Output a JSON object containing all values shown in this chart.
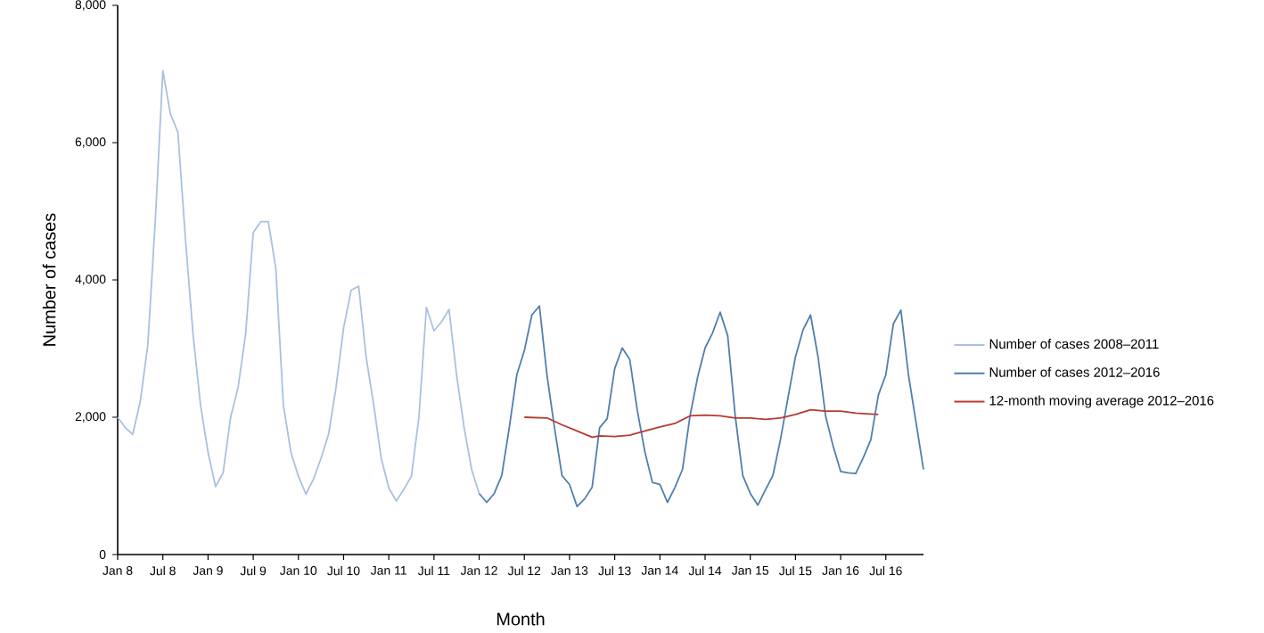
{
  "chart_data": {
    "type": "line",
    "xlabel": "Month",
    "ylabel": "Number of cases",
    "xlim": [
      "2008-01",
      "2016-12"
    ],
    "ylim": [
      0,
      8000
    ],
    "xticks": [
      {
        "value": "2008-01",
        "label": "Jan 8"
      },
      {
        "value": "2008-07",
        "label": "Jul 8"
      },
      {
        "value": "2009-01",
        "label": "Jan 9"
      },
      {
        "value": "2009-07",
        "label": "Jul 9"
      },
      {
        "value": "2010-01",
        "label": "Jan 10"
      },
      {
        "value": "2010-07",
        "label": "Jul 10"
      },
      {
        "value": "2011-01",
        "label": "Jan 11"
      },
      {
        "value": "2011-07",
        "label": "Jul 11"
      },
      {
        "value": "2012-01",
        "label": "Jan 12"
      },
      {
        "value": "2012-07",
        "label": "Jul 12"
      },
      {
        "value": "2013-01",
        "label": "Jan 13"
      },
      {
        "value": "2013-07",
        "label": "Jul 13"
      },
      {
        "value": "2014-01",
        "label": "Jan 14"
      },
      {
        "value": "2014-07",
        "label": "Jul 14"
      },
      {
        "value": "2015-01",
        "label": "Jan 15"
      },
      {
        "value": "2015-07",
        "label": "Jul 15"
      },
      {
        "value": "2016-01",
        "label": "Jan 16"
      },
      {
        "value": "2016-07",
        "label": "Jul 16"
      }
    ],
    "yticks": [
      0,
      {
        "value": 2000,
        "label": "2,000"
      },
      {
        "value": 4000,
        "label": "4,000"
      },
      {
        "value": 6000,
        "label": "6,000"
      },
      {
        "value": 8000,
        "label": "8,000"
      }
    ],
    "grid": false,
    "legend": "right",
    "marker": "none",
    "line_style": "solid",
    "series": [
      {
        "name": "Number of cases 2008–2011",
        "color": "#aac0e2",
        "x": [
          "2008-01",
          "2008-02",
          "2008-03",
          "2008-04",
          "2008-05",
          "2008-06",
          "2008-07",
          "2008-08",
          "2008-09",
          "2008-10",
          "2008-11",
          "2008-12",
          "2009-01",
          "2009-02",
          "2009-03",
          "2009-04",
          "2009-05",
          "2009-06",
          "2009-07",
          "2009-08",
          "2009-09",
          "2009-10",
          "2009-11",
          "2009-12",
          "2010-01",
          "2010-02",
          "2010-03",
          "2010-04",
          "2010-05",
          "2010-06",
          "2010-07",
          "2010-08",
          "2010-09",
          "2010-10",
          "2010-11",
          "2010-12",
          "2011-01",
          "2011-02",
          "2011-03",
          "2011-04",
          "2011-05",
          "2011-06",
          "2011-07",
          "2011-08",
          "2011-09",
          "2011-10",
          "2011-11",
          "2011-12",
          "2012-01"
        ],
        "values": [
          2000,
          1850,
          1750,
          2230,
          3050,
          4870,
          7050,
          6420,
          6150,
          4600,
          3220,
          2180,
          1490,
          990,
          1190,
          2000,
          2440,
          3220,
          4690,
          4850,
          4850,
          4170,
          2180,
          1490,
          1140,
          880,
          1100,
          1400,
          1750,
          2440,
          3300,
          3850,
          3910,
          2870,
          2180,
          1400,
          970,
          780,
          950,
          1140,
          2000,
          3600,
          3260,
          3390,
          3570,
          2620,
          1850,
          1240,
          890
        ]
      },
      {
        "name": "Number of cases 2012–2016",
        "color": "#4f7fb0",
        "x": [
          "2012-01",
          "2012-02",
          "2012-03",
          "2012-04",
          "2012-05",
          "2012-06",
          "2012-07",
          "2012-08",
          "2012-09",
          "2012-10",
          "2012-11",
          "2012-12",
          "2013-01",
          "2013-02",
          "2013-03",
          "2013-04",
          "2013-05",
          "2013-06",
          "2013-07",
          "2013-08",
          "2013-09",
          "2013-10",
          "2013-11",
          "2013-12",
          "2014-01",
          "2014-02",
          "2014-03",
          "2014-04",
          "2014-05",
          "2014-06",
          "2014-07",
          "2014-08",
          "2014-09",
          "2014-10",
          "2014-11",
          "2014-12",
          "2015-01",
          "2015-02",
          "2015-03",
          "2015-04",
          "2015-05",
          "2015-06",
          "2015-07",
          "2015-08",
          "2015-09",
          "2015-10",
          "2015-11",
          "2015-12",
          "2016-01",
          "2016-02",
          "2016-03",
          "2016-04",
          "2016-05",
          "2016-06",
          "2016-07",
          "2016-08",
          "2016-09",
          "2016-10",
          "2016-11",
          "2016-12"
        ],
        "values": [
          890,
          760,
          890,
          1150,
          1850,
          2620,
          2970,
          3490,
          3620,
          2620,
          1850,
          1150,
          1020,
          700,
          810,
          980,
          1850,
          1980,
          2710,
          3010,
          2840,
          2100,
          1500,
          1050,
          1020,
          760,
          980,
          1240,
          2020,
          2580,
          3010,
          3230,
          3530,
          3190,
          2020,
          1150,
          890,
          720,
          940,
          1150,
          1670,
          2280,
          2880,
          3270,
          3490,
          2880,
          2020,
          1580,
          1210,
          1190,
          1180,
          1410,
          1670,
          2320,
          2620,
          3360,
          3560,
          2620,
          1930,
          1240
        ]
      },
      {
        "name": "12-month moving average 2012–2016",
        "color": "#b83a30",
        "x": [
          "2012-07",
          "2012-10",
          "2012-12",
          "2013-02",
          "2013-04",
          "2013-05",
          "2013-07",
          "2013-09",
          "2013-11",
          "2014-01",
          "2014-03",
          "2014-05",
          "2014-07",
          "2014-09",
          "2014-11",
          "2015-01",
          "2015-03",
          "2015-05",
          "2015-07",
          "2015-09",
          "2015-11",
          "2016-01",
          "2016-03",
          "2016-06"
        ],
        "values": [
          2000,
          1990,
          1890,
          1800,
          1710,
          1730,
          1720,
          1740,
          1800,
          1860,
          1910,
          2020,
          2030,
          2020,
          1990,
          1990,
          1970,
          1990,
          2040,
          2110,
          2090,
          2090,
          2060,
          2040
        ]
      }
    ]
  }
}
